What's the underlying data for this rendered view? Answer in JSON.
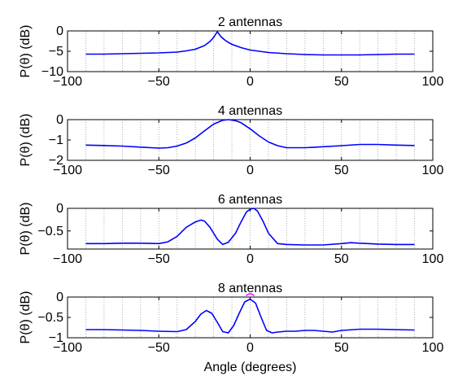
{
  "chart_data": [
    {
      "type": "line",
      "title": "2 antennas",
      "ylabel": "P(θ) (dB)",
      "xlabel": "",
      "xlim": [
        -100,
        100
      ],
      "ylim": [
        -10,
        0
      ],
      "xticks": [
        "−100",
        "−50",
        "0",
        "50",
        "100"
      ],
      "yticks": [
        "0",
        "−5",
        "−10"
      ],
      "yticks_values": [
        0,
        -5,
        -10
      ],
      "grid": "vertical dotted",
      "series": [
        {
          "color": "#0000ff",
          "x": [
            -90,
            -80,
            -70,
            -60,
            -50,
            -40,
            -35,
            -30,
            -25,
            -22,
            -20,
            -18,
            -16,
            -14,
            -12,
            -10,
            -5,
            0,
            10,
            20,
            30,
            40,
            50,
            60,
            70,
            80,
            90
          ],
          "y": [
            -5.7,
            -5.7,
            -5.6,
            -5.5,
            -5.4,
            -5.2,
            -4.9,
            -4.5,
            -3.6,
            -2.6,
            -1.6,
            -0.2,
            -1.4,
            -2.2,
            -2.8,
            -3.3,
            -4.1,
            -4.7,
            -5.3,
            -5.6,
            -5.8,
            -5.9,
            -5.9,
            -5.9,
            -5.8,
            -5.7,
            -5.7
          ]
        }
      ]
    },
    {
      "type": "line",
      "title": "4 antennas",
      "ylabel": "P(θ) (dB)",
      "xlabel": "",
      "xlim": [
        -100,
        100
      ],
      "ylim": [
        -2,
        0
      ],
      "xticks": [
        "−100",
        "−50",
        "0",
        "50",
        "100"
      ],
      "yticks": [
        "0",
        "−1",
        "−2"
      ],
      "yticks_values": [
        0,
        -1,
        -2
      ],
      "grid": "vertical dotted",
      "series": [
        {
          "color": "#0000ff",
          "x": [
            -90,
            -80,
            -70,
            -60,
            -50,
            -45,
            -40,
            -35,
            -30,
            -25,
            -20,
            -15,
            -12,
            -8,
            -5,
            0,
            5,
            10,
            15,
            20,
            30,
            40,
            50,
            60,
            70,
            80,
            90
          ],
          "y": [
            -1.25,
            -1.27,
            -1.3,
            -1.35,
            -1.4,
            -1.38,
            -1.3,
            -1.15,
            -0.9,
            -0.55,
            -0.22,
            -0.03,
            0.0,
            -0.05,
            -0.15,
            -0.45,
            -0.8,
            -1.1,
            -1.28,
            -1.38,
            -1.38,
            -1.33,
            -1.28,
            -1.22,
            -1.22,
            -1.25,
            -1.27
          ]
        }
      ]
    },
    {
      "type": "line",
      "title": "6 antennas",
      "ylabel": "P(θ) (dB)",
      "xlabel": "",
      "xlim": [
        -100,
        100
      ],
      "ylim": [
        -0.9,
        0
      ],
      "xticks": [
        "−100",
        "−50",
        "0",
        "50",
        "100"
      ],
      "yticks": [
        "0",
        "−0.5"
      ],
      "yticks_values": [
        0,
        -0.5
      ],
      "grid": "vertical dotted",
      "series": [
        {
          "color": "#0000ff",
          "x": [
            -90,
            -80,
            -70,
            -60,
            -50,
            -45,
            -40,
            -35,
            -30,
            -27,
            -25,
            -22,
            -18,
            -15,
            -12,
            -8,
            -5,
            -2,
            0,
            2,
            4,
            7,
            10,
            15,
            20,
            30,
            40,
            50,
            55,
            60,
            70,
            80,
            90
          ],
          "y": [
            -0.78,
            -0.78,
            -0.77,
            -0.77,
            -0.78,
            -0.74,
            -0.62,
            -0.42,
            -0.3,
            -0.26,
            -0.28,
            -0.42,
            -0.68,
            -0.8,
            -0.75,
            -0.55,
            -0.3,
            -0.08,
            -0.02,
            0.0,
            -0.06,
            -0.28,
            -0.55,
            -0.78,
            -0.8,
            -0.81,
            -0.81,
            -0.78,
            -0.76,
            -0.77,
            -0.79,
            -0.8,
            -0.8
          ]
        }
      ]
    },
    {
      "type": "line",
      "title": "8 antennas",
      "ylabel": "P(θ) (dB)",
      "xlabel": "Angle (degrees)",
      "xlim": [
        -100,
        100
      ],
      "ylim": [
        -1,
        0
      ],
      "xticks": [
        "−100",
        "−50",
        "0",
        "50",
        "100"
      ],
      "yticks": [
        "0",
        "−0.5",
        "−1"
      ],
      "yticks_values": [
        0,
        -0.5,
        -1
      ],
      "grid": "vertical dotted",
      "marker": {
        "x": 0,
        "y": -0.03,
        "color": "#ff00ff"
      },
      "series": [
        {
          "color": "#0000ff",
          "x": [
            -90,
            -80,
            -70,
            -60,
            -50,
            -40,
            -35,
            -30,
            -27,
            -24,
            -21,
            -18,
            -15,
            -12,
            -9,
            -6,
            -3,
            0,
            3,
            6,
            9,
            12,
            15,
            20,
            25,
            30,
            35,
            40,
            45,
            50,
            60,
            70,
            80,
            90
          ],
          "y": [
            -0.8,
            -0.8,
            -0.81,
            -0.82,
            -0.84,
            -0.85,
            -0.8,
            -0.6,
            -0.42,
            -0.33,
            -0.4,
            -0.62,
            -0.85,
            -0.88,
            -0.7,
            -0.4,
            -0.12,
            -0.05,
            -0.15,
            -0.5,
            -0.82,
            -0.88,
            -0.86,
            -0.84,
            -0.84,
            -0.82,
            -0.82,
            -0.84,
            -0.86,
            -0.82,
            -0.79,
            -0.79,
            -0.8,
            -0.81
          ]
        }
      ]
    }
  ]
}
